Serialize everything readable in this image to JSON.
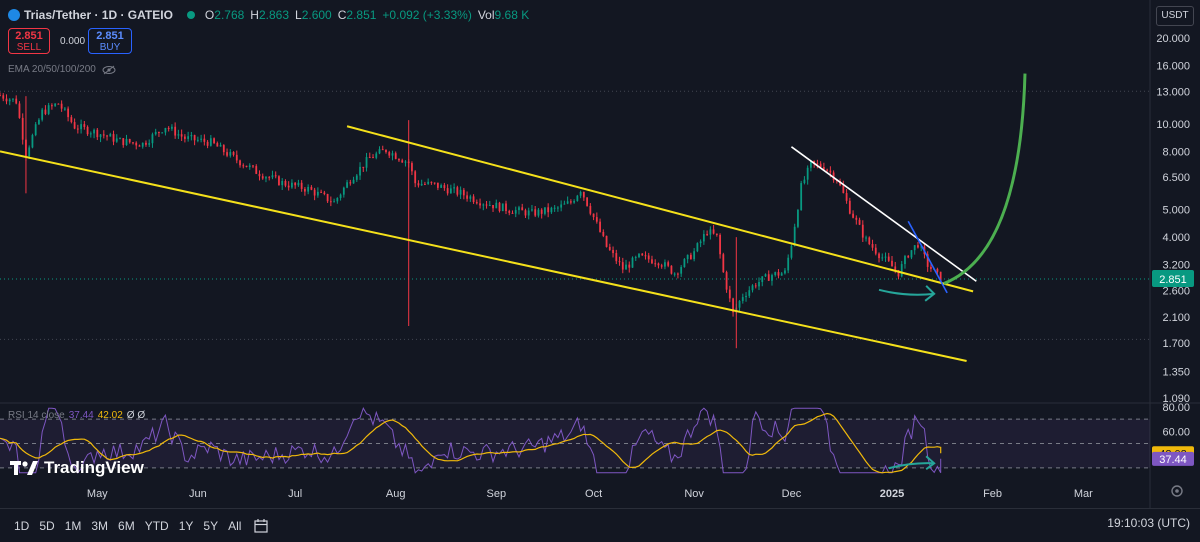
{
  "header": {
    "symbol": "Trias/Tether · 1D · GATEIO",
    "open_label": "O",
    "open": "2.768",
    "high_label": "H",
    "high": "2.863",
    "low_label": "L",
    "low": "2.600",
    "close_label": "C",
    "close": "2.851",
    "change": "+0.092 (+3.33%)",
    "vol_label": "Vol",
    "vol": "9.68 K"
  },
  "trade": {
    "sell_price": "2.851",
    "sell_label": "SELL",
    "spread": "0.000",
    "buy_price": "2.851",
    "buy_label": "BUY"
  },
  "indicators": {
    "ema": "EMA 20/50/100/200"
  },
  "currency": "USDT",
  "rsi": {
    "label": "RSI 14 close",
    "value1": "37.44",
    "value2": "42.02",
    "value3": "Ø Ø"
  },
  "brand": "TradingView",
  "timeframes": [
    "1D",
    "5D",
    "1M",
    "3M",
    "6M",
    "YTD",
    "1Y",
    "5Y",
    "All"
  ],
  "clock": "19:10:03 (UTC)",
  "colors": {
    "up": "#089981",
    "down": "#f23645",
    "channel": "#f5e11b",
    "rsi": "#7e57c2",
    "rsi_ma": "#f0b90b",
    "projection": "#4caf50",
    "arrow": "#26a69a",
    "trend_white": "#ffffff",
    "trend_blue": "#2962ff"
  },
  "chart_data": {
    "type": "candlestick",
    "scale": "log",
    "y_ticks": [
      "20.000",
      "16.000",
      "13.000",
      "10.000",
      "8.000",
      "6.500",
      "5.000",
      "4.000",
      "3.200",
      "2.600",
      "2.100",
      "1.700",
      "1.350",
      "1.090"
    ],
    "y_tick_values": [
      20,
      16,
      13,
      10,
      8,
      6.5,
      5,
      4,
      3.2,
      2.6,
      2.1,
      1.7,
      1.35,
      1.09
    ],
    "last_price_label": "2.851",
    "last_price": 2.851,
    "x_ticks": [
      "May",
      "Jun",
      "Jul",
      "Aug",
      "Sep",
      "Oct",
      "Nov",
      "Dec",
      "2025",
      "Feb",
      "Mar"
    ],
    "x_tick_dates": [
      "2024-05-01",
      "2024-06-01",
      "2024-07-01",
      "2024-08-01",
      "2024-09-01",
      "2024-10-01",
      "2024-11-01",
      "2024-12-01",
      "2025-01-01",
      "2025-02-01",
      "2025-03-01"
    ],
    "start_date": "2024-04-01",
    "end_date": "2025-03-20",
    "price_path": [
      [
        "2024-04-01",
        12.6
      ],
      [
        "2024-04-06",
        12.0
      ],
      [
        "2024-04-09",
        7.9
      ],
      [
        "2024-04-14",
        11.0
      ],
      [
        "2024-04-19",
        11.8
      ],
      [
        "2024-04-24",
        9.8
      ],
      [
        "2024-05-01",
        9.3
      ],
      [
        "2024-05-08",
        8.7
      ],
      [
        "2024-05-15",
        8.5
      ],
      [
        "2024-05-22",
        9.8
      ],
      [
        "2024-05-28",
        8.9
      ],
      [
        "2024-06-05",
        8.6
      ],
      [
        "2024-06-12",
        7.6
      ],
      [
        "2024-06-19",
        6.8
      ],
      [
        "2024-06-27",
        6.2
      ],
      [
        "2024-07-05",
        5.9
      ],
      [
        "2024-07-13",
        5.3
      ],
      [
        "2024-07-18",
        6.4
      ],
      [
        "2024-07-24",
        7.6
      ],
      [
        "2024-07-29",
        8.1
      ],
      [
        "2024-08-05",
        7.3
      ],
      [
        "2024-08-07",
        6.2
      ],
      [
        "2024-08-13",
        6.1
      ],
      [
        "2024-08-21",
        5.7
      ],
      [
        "2024-08-28",
        5.3
      ],
      [
        "2024-09-05",
        5.0
      ],
      [
        "2024-09-12",
        4.85
      ],
      [
        "2024-09-19",
        5.0
      ],
      [
        "2024-09-24",
        5.3
      ],
      [
        "2024-09-27",
        5.9
      ],
      [
        "2024-10-01",
        4.7
      ],
      [
        "2024-10-05",
        3.7
      ],
      [
        "2024-10-10",
        3.1
      ],
      [
        "2024-10-15",
        3.4
      ],
      [
        "2024-10-21",
        3.3
      ],
      [
        "2024-10-26",
        3.0
      ],
      [
        "2024-11-01",
        3.55
      ],
      [
        "2024-11-05",
        4.2
      ],
      [
        "2024-11-08",
        4.0
      ],
      [
        "2024-11-10",
        3.0
      ],
      [
        "2024-11-13",
        2.15
      ],
      [
        "2024-11-16",
        2.5
      ],
      [
        "2024-11-20",
        2.75
      ],
      [
        "2024-11-25",
        2.95
      ],
      [
        "2024-11-29",
        3.0
      ],
      [
        "2024-12-01",
        3.8
      ],
      [
        "2024-12-04",
        6.0
      ],
      [
        "2024-12-07",
        7.2
      ],
      [
        "2024-12-11",
        7.1
      ],
      [
        "2024-12-15",
        6.4
      ],
      [
        "2024-12-19",
        5.0
      ],
      [
        "2024-12-24",
        3.9
      ],
      [
        "2024-12-29",
        3.4
      ],
      [
        "2025-01-03",
        3.0
      ],
      [
        "2025-01-06",
        3.5
      ],
      [
        "2025-01-09",
        3.8
      ],
      [
        "2025-01-12",
        3.2
      ],
      [
        "2025-01-16",
        2.85
      ]
    ],
    "spikes": [
      [
        "2024-04-09",
        12.5,
        5.7
      ],
      [
        "2024-08-05",
        10.3,
        1.95
      ],
      [
        "2024-11-14",
        4.0,
        1.63
      ]
    ],
    "channel_upper": [
      [
        "2024-07-17",
        9.8
      ],
      [
        "2025-01-26",
        2.58
      ]
    ],
    "channel_lower": [
      [
        "2024-04-01",
        8.0
      ],
      [
        "2025-01-24",
        1.47
      ]
    ],
    "trendline_white": [
      [
        "2024-12-01",
        8.3
      ],
      [
        "2025-01-27",
        2.8
      ]
    ],
    "trendline_blue": [
      [
        "2025-01-06",
        4.55
      ],
      [
        "2025-01-18",
        2.55
      ]
    ],
    "projection": [
      [
        "2025-01-17",
        2.75
      ],
      [
        "2025-02-11",
        15.0
      ]
    ],
    "rsi_ticks": [
      "80.00",
      "60.00",
      "42.02",
      "37.44"
    ],
    "rsi_tick_values": [
      80,
      60,
      42.02,
      37.44
    ],
    "rsi_bands": [
      70,
      50,
      30
    ],
    "rsi_values_end": [
      37.44,
      42.02
    ]
  }
}
